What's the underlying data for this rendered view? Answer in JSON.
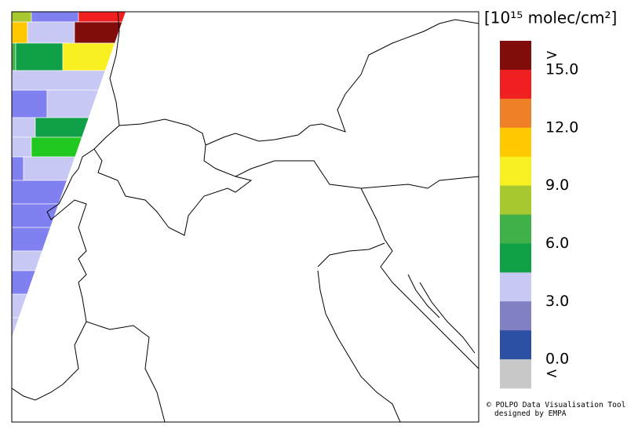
{
  "legend": {
    "title": "[10¹⁵ molec/cm²]",
    "colors": [
      "#800c0c",
      "#f02020",
      "#f08028",
      "#ffc800",
      "#f8f020",
      "#a8c830",
      "#40b048",
      "#10a048",
      "#c8c8f4",
      "#8080c4",
      "#2c50a4",
      "#c8c8c8"
    ],
    "labels": [
      ">",
      "15.0",
      "12.0",
      "9.0",
      "6.0",
      "3.0",
      "0.0",
      "<"
    ]
  },
  "credit": [
    "© POLPO Data Visualisation Tool",
    "designed by EMPA"
  ]
}
